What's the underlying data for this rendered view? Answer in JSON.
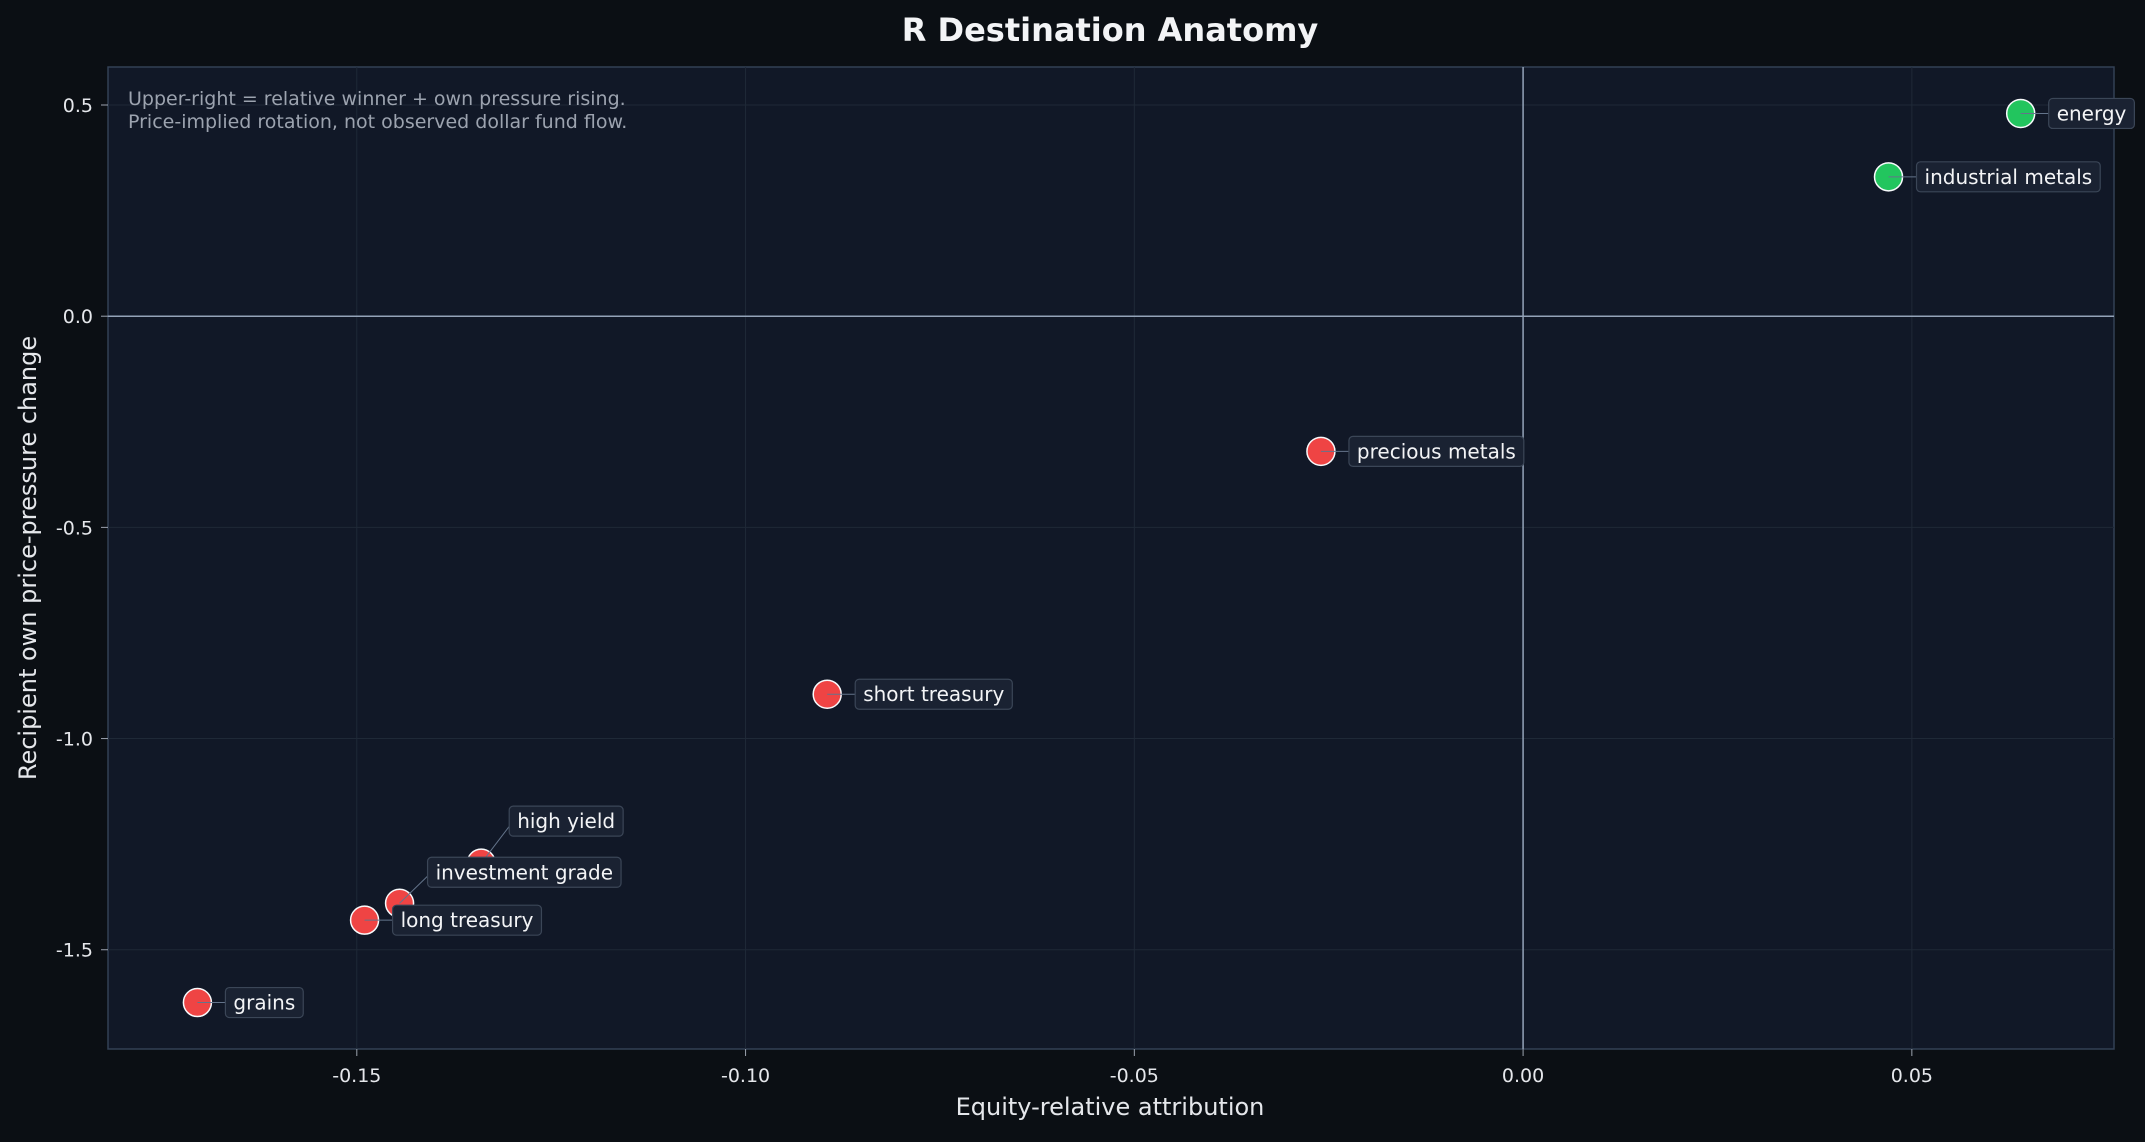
{
  "chart_data": {
    "type": "scatter",
    "title": "R Destination Anatomy",
    "xlabel": "Equity-relative attribution",
    "ylabel": "Recipient own price-pressure change",
    "xlim": [
      -0.182,
      0.076
    ],
    "ylim": [
      -1.735,
      0.59
    ],
    "xticks": [
      -0.15,
      -0.1,
      -0.05,
      0.0,
      0.05
    ],
    "xtick_labels": [
      "-0.15",
      "-0.10",
      "-0.05",
      "0.00",
      "0.05"
    ],
    "yticks": [
      0.5,
      0.0,
      -0.5,
      -1.0,
      -1.5
    ],
    "ytick_labels": [
      "0.5",
      "0.0",
      "-0.5",
      "-1.0",
      "-1.5"
    ],
    "grid": true,
    "reference_lines": {
      "x": 0.0,
      "y": 0.0
    },
    "annotation_lines": [
      "Upper-right = relative winner + own pressure rising.",
      "Price-implied rotation, not observed dollar fund flow."
    ],
    "colors": {
      "positive": "#22c55e",
      "negative": "#ef4444",
      "plot_background": "#111827",
      "figure_background": "#0b0f14"
    },
    "points": [
      {
        "label": "energy",
        "x": 0.064,
        "y": 0.48,
        "positive": true
      },
      {
        "label": "industrial metals",
        "x": 0.047,
        "y": 0.33,
        "positive": true
      },
      {
        "label": "precious metals",
        "x": -0.026,
        "y": -0.32,
        "positive": false
      },
      {
        "label": "short treasury",
        "x": -0.0895,
        "y": -0.895,
        "positive": false
      },
      {
        "label": "high yield",
        "x": -0.134,
        "y": -1.295,
        "positive": false
      },
      {
        "label": "investment grade",
        "x": -0.1445,
        "y": -1.39,
        "positive": false
      },
      {
        "label": "long treasury",
        "x": -0.149,
        "y": -1.43,
        "positive": false
      },
      {
        "label": "grains",
        "x": -0.1705,
        "y": -1.625,
        "positive": false
      }
    ]
  }
}
